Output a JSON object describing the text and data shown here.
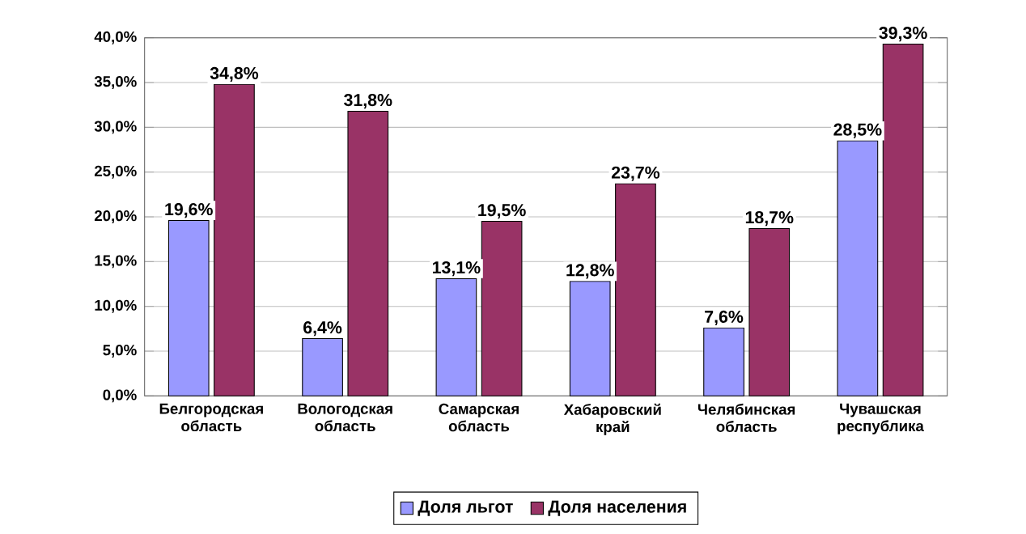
{
  "chart_data": {
    "type": "bar",
    "categories": [
      "Белгородская область",
      "Вологодская область",
      "Самарская область",
      "Хабаровский край",
      "Челябинская область",
      "Чувашская республика"
    ],
    "series": [
      {
        "name": "Доля льгот",
        "color": "#9999ff",
        "values": [
          19.6,
          6.4,
          13.1,
          12.8,
          7.6,
          28.5
        ],
        "value_labels": [
          "19,6%",
          "6,4%",
          "13,1%",
          "12,8%",
          "7,6%",
          "28,5%"
        ]
      },
      {
        "name": "Доля населения",
        "color": "#993366",
        "values": [
          34.8,
          31.8,
          19.5,
          23.7,
          18.7,
          39.3
        ],
        "value_labels": [
          "34,8%",
          "31,8%",
          "19,5%",
          "23,7%",
          "18,7%",
          "39,3%"
        ]
      }
    ],
    "ylim": [
      0,
      40
    ],
    "yticks": [
      {
        "value": 0,
        "label": "0,0%"
      },
      {
        "value": 5,
        "label": "5,0%"
      },
      {
        "value": 10,
        "label": "10,0%"
      },
      {
        "value": 15,
        "label": "15,0%"
      },
      {
        "value": 20,
        "label": "20,0%"
      },
      {
        "value": 25,
        "label": "25,0%"
      },
      {
        "value": 30,
        "label": "30,0%"
      },
      {
        "value": 35,
        "label": "35,0%"
      },
      {
        "value": 40,
        "label": "40,0%"
      }
    ],
    "grid": "y",
    "legend": "bottom"
  }
}
